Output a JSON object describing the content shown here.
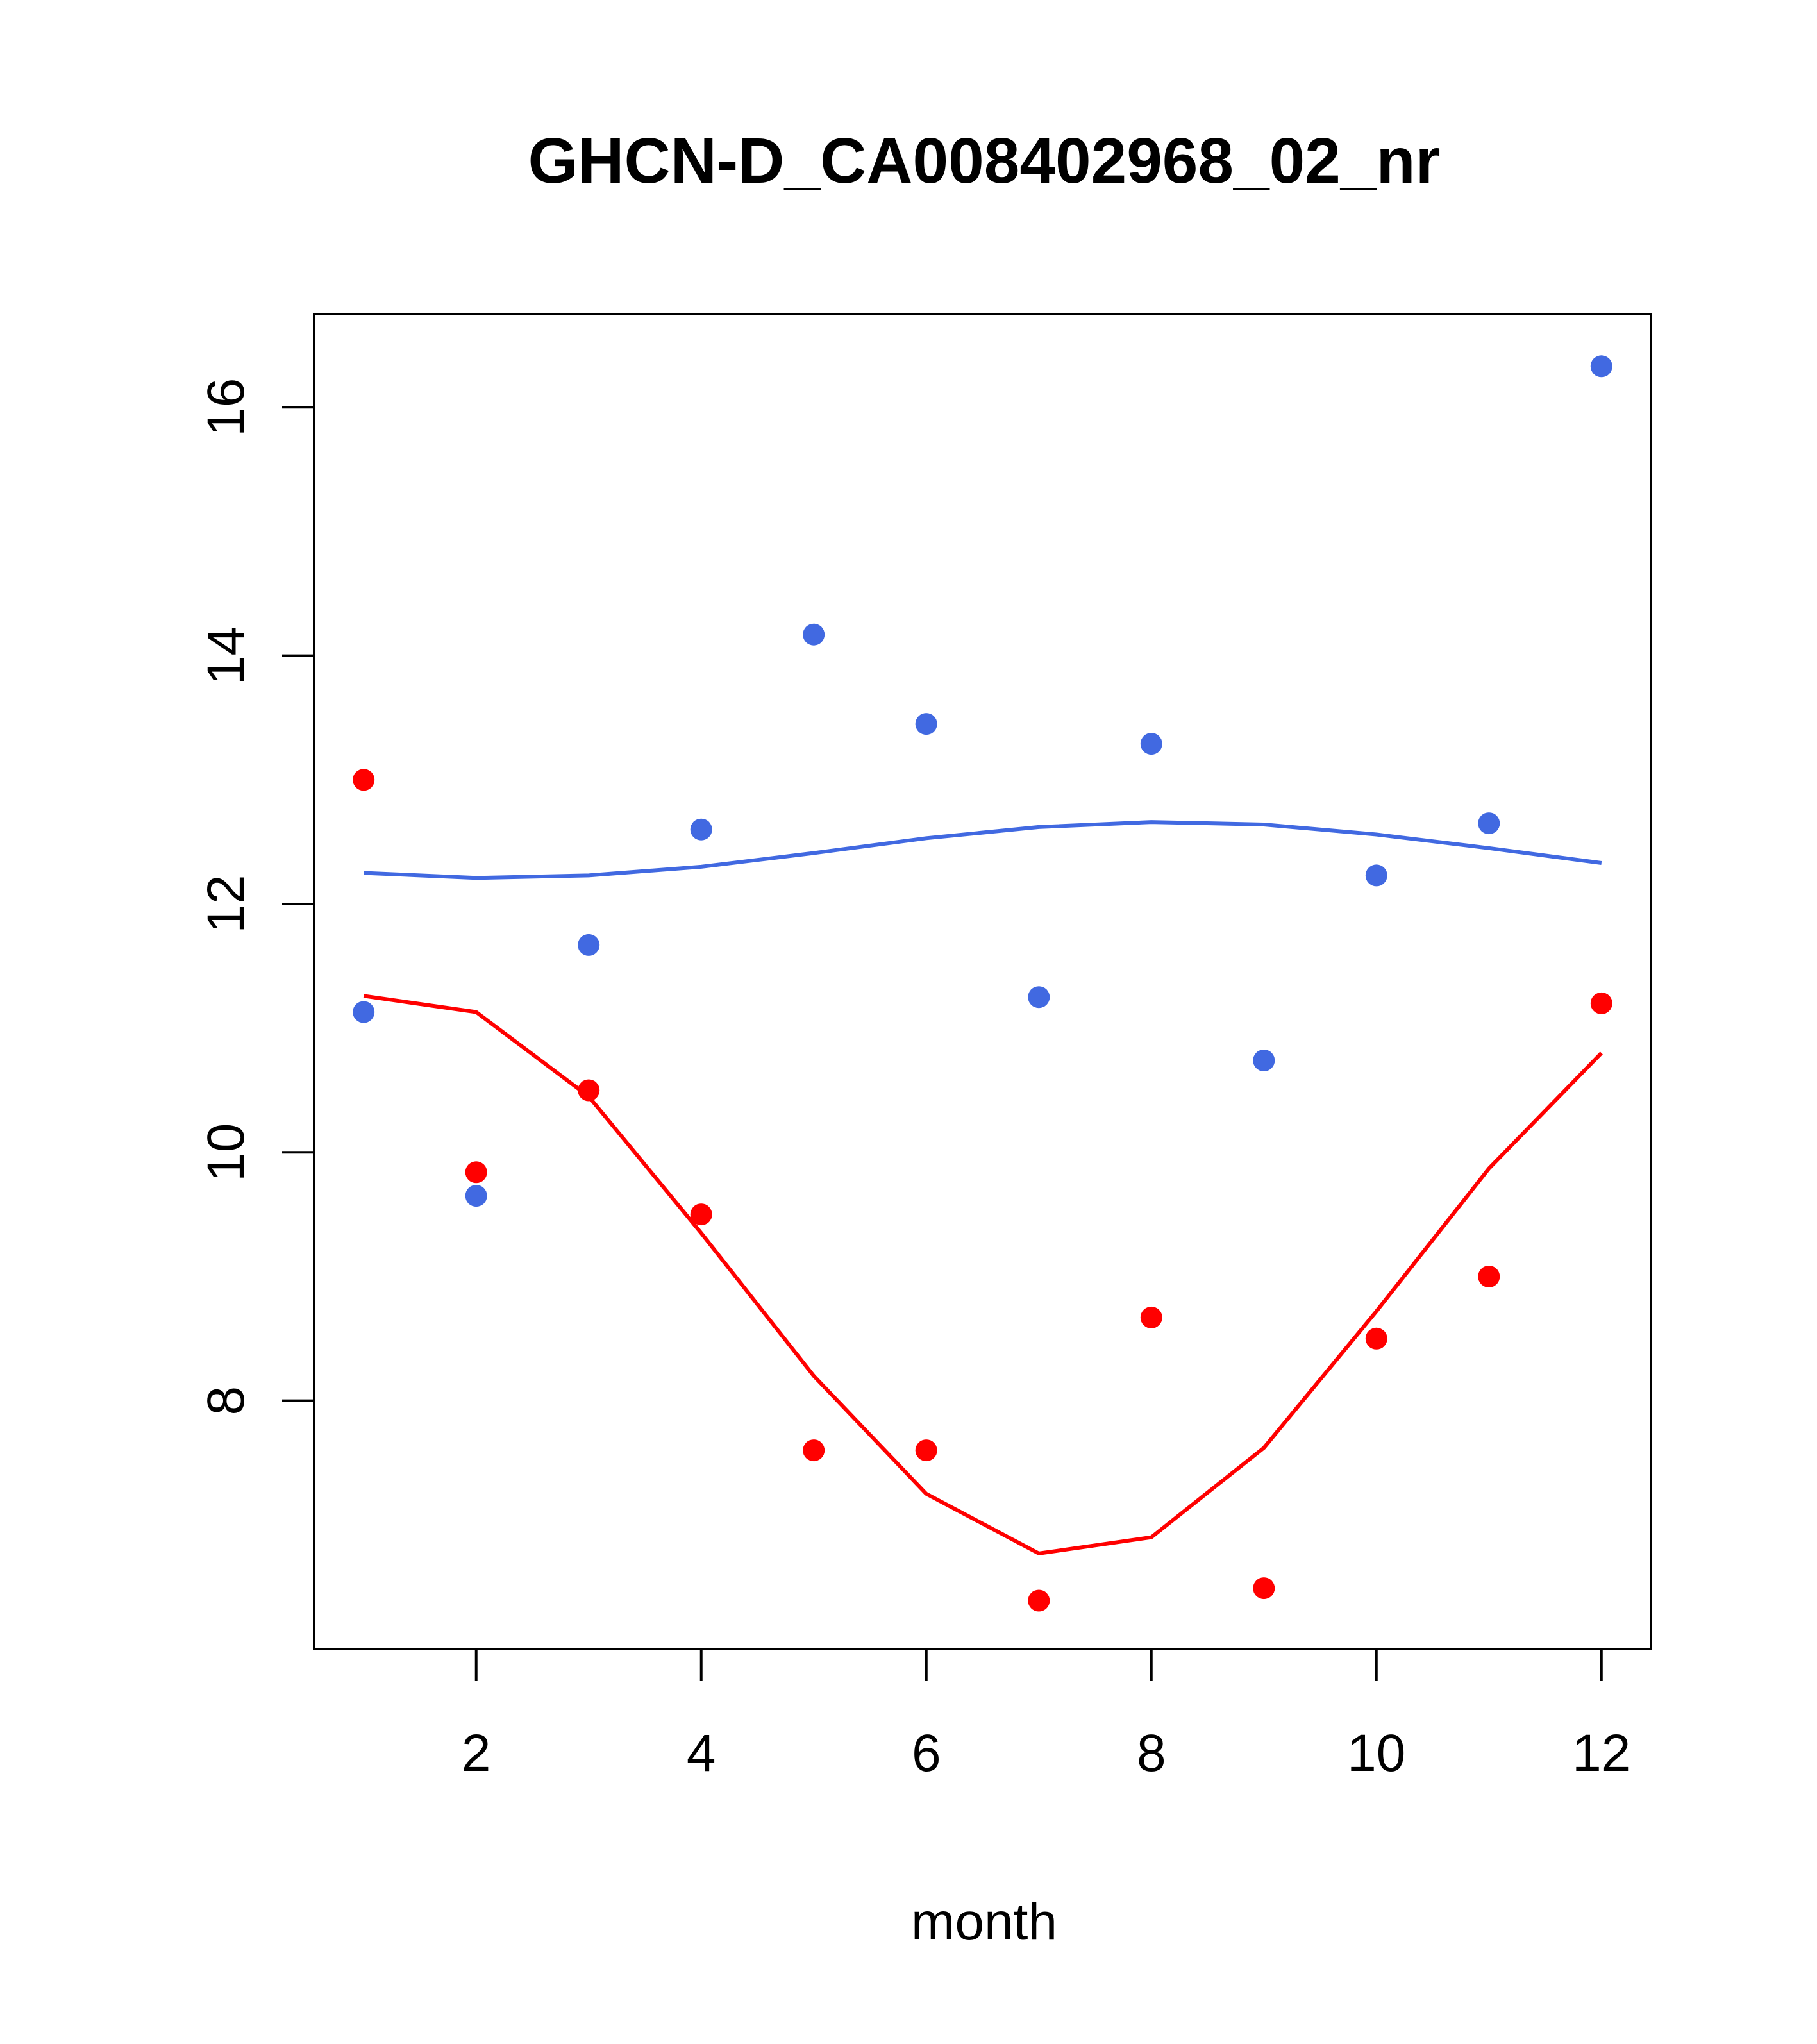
{
  "chart_data": {
    "type": "scatter",
    "title": "GHCN-D_CA008402968_02_nr",
    "xlabel": "month",
    "ylabel": "",
    "xlim": [
      0.56,
      12.44
    ],
    "ylim": [
      6.0,
      16.75
    ],
    "x_ticks": [
      2,
      4,
      6,
      8,
      10,
      12
    ],
    "y_ticks": [
      8,
      10,
      12,
      14,
      16
    ],
    "grid": false,
    "legend": "none",
    "series": [
      {
        "color": "#4169E1",
        "points_x": [
          1,
          2,
          3,
          4,
          5,
          6,
          7,
          8,
          9,
          10,
          11,
          12
        ],
        "points_y": [
          11.13,
          9.65,
          11.67,
          12.6,
          14.17,
          13.45,
          11.25,
          13.29,
          10.74,
          12.23,
          12.65,
          16.33
        ],
        "line_x": [
          1,
          2,
          3,
          4,
          5,
          6,
          7,
          8,
          9,
          10,
          11,
          12
        ],
        "line_y": [
          12.25,
          12.21,
          12.23,
          12.3,
          12.41,
          12.53,
          12.62,
          12.66,
          12.64,
          12.56,
          12.45,
          12.33
        ]
      },
      {
        "color": "#FF0000",
        "points_x": [
          1,
          2,
          3,
          4,
          5,
          6,
          7,
          8,
          9,
          10,
          11,
          12
        ],
        "points_y": [
          13.0,
          9.84,
          10.5,
          9.5,
          7.6,
          7.6,
          6.39,
          8.67,
          6.49,
          8.5,
          9.0,
          11.2
        ],
        "line_x": [
          1,
          2,
          3,
          4,
          5,
          6,
          7,
          8,
          9,
          10,
          11,
          12
        ],
        "line_y": [
          11.26,
          11.13,
          10.45,
          9.35,
          8.2,
          7.25,
          6.77,
          6.9,
          7.62,
          8.72,
          9.87,
          10.8
        ]
      }
    ]
  }
}
